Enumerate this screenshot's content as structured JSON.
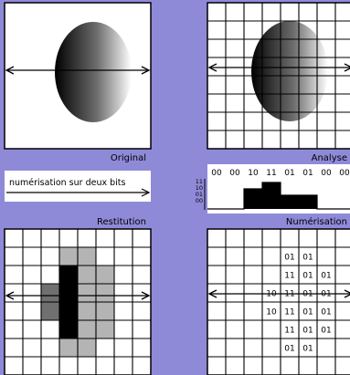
{
  "colors": {
    "background": "#8f8ad8",
    "panel": "#ffffff",
    "line": "#000000",
    "dark_gray": "#707070",
    "light_gray": "#b4b4b4",
    "black": "#000000"
  },
  "labels": {
    "original": "Original",
    "analyse": "Analyse",
    "numerisation_note": "numérisation sur deux bits",
    "restitution": "Restitution",
    "numerisation": "Numérisation"
  },
  "codes_top": [
    "00",
    "00",
    "10",
    "11",
    "01",
    "01",
    "00",
    "00"
  ],
  "level_axis": [
    "11",
    "10",
    "01",
    "00"
  ],
  "profile_levels": [
    0,
    0,
    2,
    3,
    1,
    1,
    0,
    0
  ],
  "restitution_cells": [
    {
      "col": 3,
      "row": 1,
      "level": 1
    },
    {
      "col": 4,
      "row": 1,
      "level": 1
    },
    {
      "col": 3,
      "row": 2,
      "level": 3
    },
    {
      "col": 4,
      "row": 2,
      "level": 1
    },
    {
      "col": 5,
      "row": 2,
      "level": 1
    },
    {
      "col": 2,
      "row": 3,
      "level": 2
    },
    {
      "col": 3,
      "row": 3,
      "level": 3
    },
    {
      "col": 4,
      "row": 3,
      "level": 1
    },
    {
      "col": 5,
      "row": 3,
      "level": 1
    },
    {
      "col": 2,
      "row": 4,
      "level": 2
    },
    {
      "col": 3,
      "row": 4,
      "level": 3
    },
    {
      "col": 4,
      "row": 4,
      "level": 1
    },
    {
      "col": 5,
      "row": 4,
      "level": 1
    },
    {
      "col": 3,
      "row": 5,
      "level": 3
    },
    {
      "col": 4,
      "row": 5,
      "level": 1
    },
    {
      "col": 5,
      "row": 5,
      "level": 1
    },
    {
      "col": 3,
      "row": 6,
      "level": 1
    },
    {
      "col": 4,
      "row": 6,
      "level": 1
    }
  ],
  "numerisation_cells": [
    {
      "col": 4,
      "row": 1,
      "code": "01"
    },
    {
      "col": 5,
      "row": 1,
      "code": "01"
    },
    {
      "col": 4,
      "row": 2,
      "code": "11"
    },
    {
      "col": 5,
      "row": 2,
      "code": "01"
    },
    {
      "col": 6,
      "row": 2,
      "code": "01"
    },
    {
      "col": 3,
      "row": 3,
      "code": "10"
    },
    {
      "col": 4,
      "row": 3,
      "code": "11"
    },
    {
      "col": 5,
      "row": 3,
      "code": "01"
    },
    {
      "col": 6,
      "row": 3,
      "code": "01"
    },
    {
      "col": 3,
      "row": 4,
      "code": "10"
    },
    {
      "col": 4,
      "row": 4,
      "code": "11"
    },
    {
      "col": 5,
      "row": 4,
      "code": "01"
    },
    {
      "col": 6,
      "row": 4,
      "code": "01"
    },
    {
      "col": 4,
      "row": 5,
      "code": "11"
    },
    {
      "col": 5,
      "row": 5,
      "code": "01"
    },
    {
      "col": 6,
      "row": 5,
      "code": "01"
    },
    {
      "col": 4,
      "row": 6,
      "code": "01"
    },
    {
      "col": 5,
      "row": 6,
      "code": "01"
    }
  ]
}
